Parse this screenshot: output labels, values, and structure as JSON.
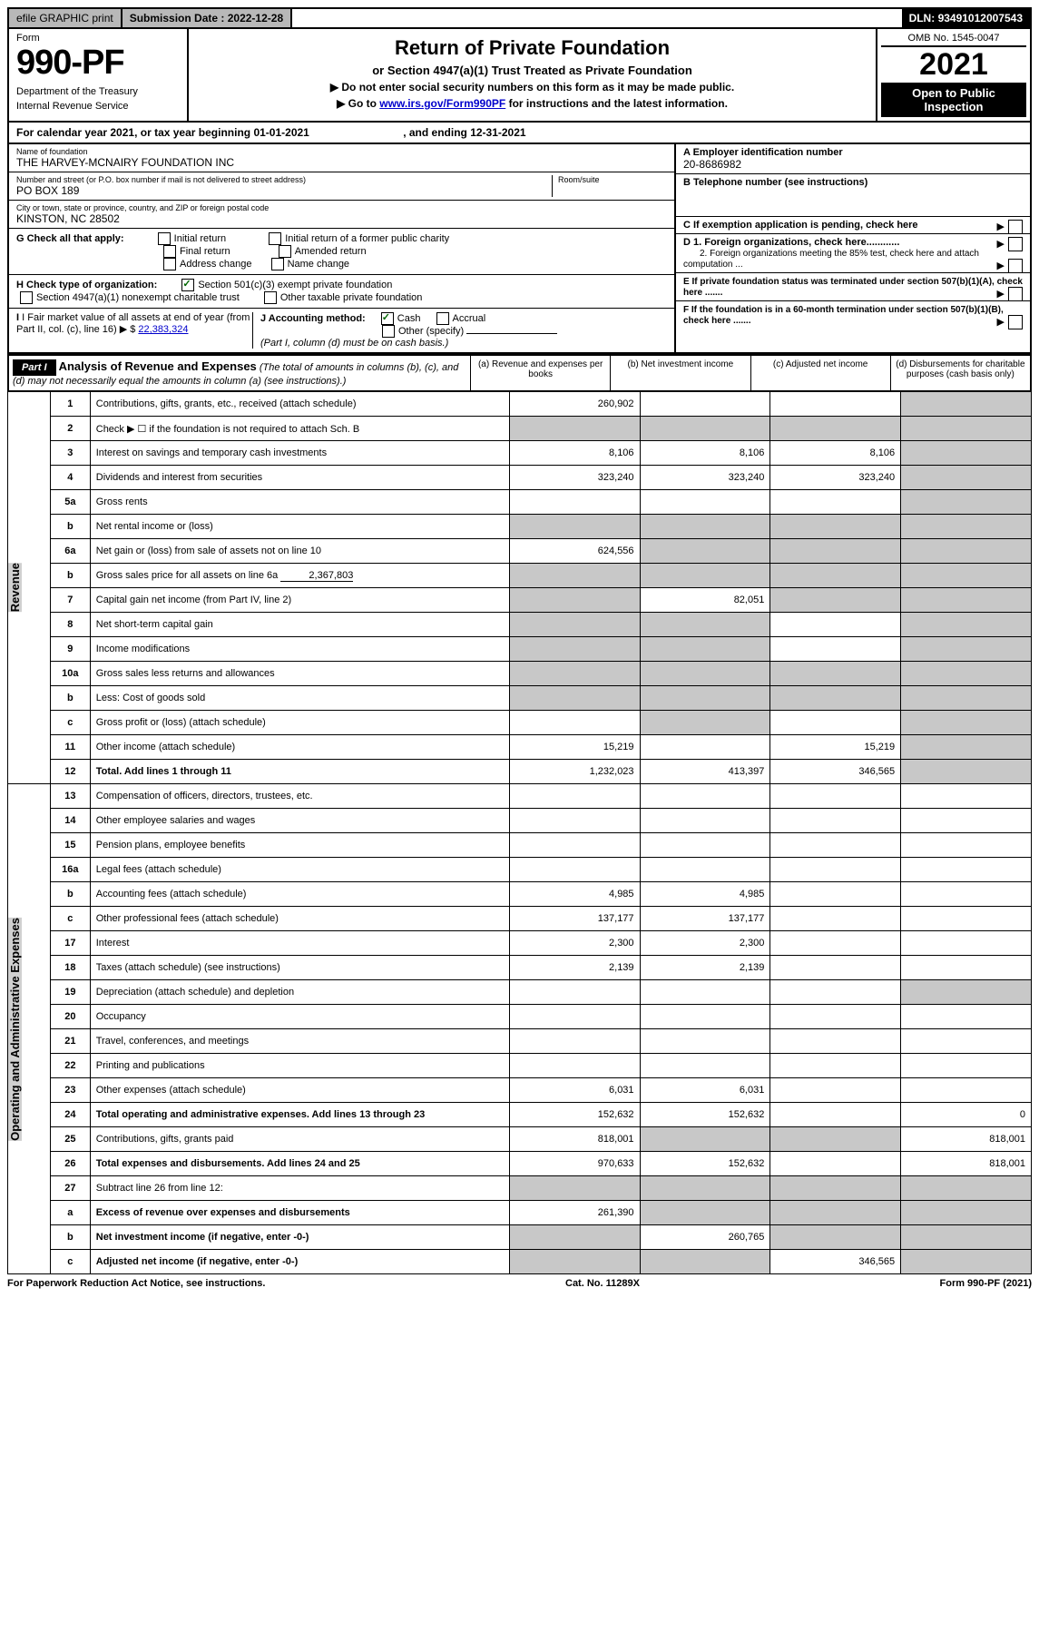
{
  "topbar": {
    "efile": "efile GRAPHIC print",
    "submission_label": "Submission Date : ",
    "submission_date": "2022-12-28",
    "dln_label": "DLN: ",
    "dln": "93491012007543"
  },
  "header": {
    "form_label": "Form",
    "form_no": "990-PF",
    "dept1": "Department of the Treasury",
    "dept2": "Internal Revenue Service",
    "title": "Return of Private Foundation",
    "subtitle": "or Section 4947(a)(1) Trust Treated as Private Foundation",
    "note1": "▶ Do not enter social security numbers on this form as it may be made public.",
    "note2_pre": "▶ Go to ",
    "note2_link": "www.irs.gov/Form990PF",
    "note2_post": " for instructions and the latest information.",
    "omb": "OMB No. 1545-0047",
    "year": "2021",
    "openbox1": "Open to Public",
    "openbox2": "Inspection"
  },
  "calyear": {
    "pre": "For calendar year 2021, or tax year beginning ",
    "begin": "01-01-2021",
    "mid": " , and ending ",
    "end": "12-31-2021"
  },
  "info": {
    "name_label": "Name of foundation",
    "name": "THE HARVEY-MCNAIRY FOUNDATION INC",
    "addr_label": "Number and street (or P.O. box number if mail is not delivered to street address)",
    "addr": "PO BOX 189",
    "room_label": "Room/suite",
    "city_label": "City or town, state or province, country, and ZIP or foreign postal code",
    "city": "KINSTON, NC  28502",
    "ein_label": "A Employer identification number",
    "ein": "20-8686982",
    "tel_label": "B Telephone number (see instructions)",
    "c_label": "C If exemption application is pending, check here",
    "d1": "D 1. Foreign organizations, check here............",
    "d2": "2. Foreign organizations meeting the 85% test, check here and attach computation ...",
    "e_label": "E  If private foundation status was terminated under section 507(b)(1)(A), check here .......",
    "f_label": "F  If the foundation is in a 60-month termination under section 507(b)(1)(B), check here .......",
    "g_label": "G Check all that apply:",
    "g_opts": [
      "Initial return",
      "Final return",
      "Address change",
      "Initial return of a former public charity",
      "Amended return",
      "Name change"
    ],
    "h_label": "H Check type of organization:",
    "h_opts": [
      "Section 501(c)(3) exempt private foundation",
      "Section 4947(a)(1) nonexempt charitable trust",
      "Other taxable private foundation"
    ],
    "i_label": "I Fair market value of all assets at end of year (from Part II, col. (c), line 16) ▶ $",
    "i_val": "22,383,324",
    "j_label": "J Accounting method:",
    "j_opts": [
      "Cash",
      "Accrual",
      "Other (specify)"
    ],
    "j_note": "(Part I, column (d) must be on cash basis.)"
  },
  "part1": {
    "header": "Part I",
    "title": "Analysis of Revenue and Expenses",
    "title_note": " (The total of amounts in columns (b), (c), and (d) may not necessarily equal the amounts in column (a) (see instructions).)",
    "col_a": "(a) Revenue and expenses per books",
    "col_b": "(b) Net investment income",
    "col_c": "(c) Adjusted net income",
    "col_d": "(d) Disbursements for charitable purposes (cash basis only)",
    "section_revenue": "Revenue",
    "section_expenses": "Operating and Administrative Expenses"
  },
  "rows": [
    {
      "num": "1",
      "desc": "Contributions, gifts, grants, etc., received (attach schedule)",
      "a": "260,902",
      "b": "",
      "c": "",
      "d": "",
      "d_shade": true
    },
    {
      "num": "2",
      "desc": "Check ▶ ☐ if the foundation is not required to attach Sch. B",
      "a": "",
      "b": "",
      "c": "",
      "d": "",
      "a_shade": true,
      "b_shade": true,
      "c_shade": true,
      "d_shade": true
    },
    {
      "num": "3",
      "desc": "Interest on savings and temporary cash investments",
      "a": "8,106",
      "b": "8,106",
      "c": "8,106",
      "d": "",
      "d_shade": true
    },
    {
      "num": "4",
      "desc": "Dividends and interest from securities",
      "a": "323,240",
      "b": "323,240",
      "c": "323,240",
      "d": "",
      "d_shade": true
    },
    {
      "num": "5a",
      "desc": "Gross rents",
      "a": "",
      "b": "",
      "c": "",
      "d": "",
      "d_shade": true
    },
    {
      "num": "b",
      "desc": "Net rental income or (loss)",
      "a": "",
      "b": "",
      "c": "",
      "d": "",
      "a_shade": true,
      "b_shade": true,
      "c_shade": true,
      "d_shade": true
    },
    {
      "num": "6a",
      "desc": "Net gain or (loss) from sale of assets not on line 10",
      "a": "624,556",
      "b": "",
      "c": "",
      "d": "",
      "b_shade": true,
      "c_shade": true,
      "d_shade": true
    },
    {
      "num": "b",
      "desc": "Gross sales price for all assets on line 6a",
      "inline": "2,367,803",
      "a": "",
      "b": "",
      "c": "",
      "d": "",
      "a_shade": true,
      "b_shade": true,
      "c_shade": true,
      "d_shade": true
    },
    {
      "num": "7",
      "desc": "Capital gain net income (from Part IV, line 2)",
      "a": "",
      "b": "82,051",
      "c": "",
      "d": "",
      "a_shade": true,
      "c_shade": true,
      "d_shade": true
    },
    {
      "num": "8",
      "desc": "Net short-term capital gain",
      "a": "",
      "b": "",
      "c": "",
      "d": "",
      "a_shade": true,
      "b_shade": true,
      "d_shade": true
    },
    {
      "num": "9",
      "desc": "Income modifications",
      "a": "",
      "b": "",
      "c": "",
      "d": "",
      "a_shade": true,
      "b_shade": true,
      "d_shade": true
    },
    {
      "num": "10a",
      "desc": "Gross sales less returns and allowances",
      "a": "",
      "b": "",
      "c": "",
      "d": "",
      "a_shade": true,
      "b_shade": true,
      "c_shade": true,
      "d_shade": true
    },
    {
      "num": "b",
      "desc": "Less: Cost of goods sold",
      "a": "",
      "b": "",
      "c": "",
      "d": "",
      "a_shade": true,
      "b_shade": true,
      "c_shade": true,
      "d_shade": true
    },
    {
      "num": "c",
      "desc": "Gross profit or (loss) (attach schedule)",
      "a": "",
      "b": "",
      "c": "",
      "d": "",
      "b_shade": true,
      "d_shade": true
    },
    {
      "num": "11",
      "desc": "Other income (attach schedule)",
      "a": "15,219",
      "b": "",
      "c": "15,219",
      "d": "",
      "d_shade": true
    },
    {
      "num": "12",
      "desc": "Total. Add lines 1 through 11",
      "bold": true,
      "a": "1,232,023",
      "b": "413,397",
      "c": "346,565",
      "d": "",
      "d_shade": true
    },
    {
      "num": "13",
      "desc": "Compensation of officers, directors, trustees, etc.",
      "a": "",
      "b": "",
      "c": "",
      "d": ""
    },
    {
      "num": "14",
      "desc": "Other employee salaries and wages",
      "a": "",
      "b": "",
      "c": "",
      "d": ""
    },
    {
      "num": "15",
      "desc": "Pension plans, employee benefits",
      "a": "",
      "b": "",
      "c": "",
      "d": ""
    },
    {
      "num": "16a",
      "desc": "Legal fees (attach schedule)",
      "a": "",
      "b": "",
      "c": "",
      "d": ""
    },
    {
      "num": "b",
      "desc": "Accounting fees (attach schedule)",
      "a": "4,985",
      "b": "4,985",
      "c": "",
      "d": ""
    },
    {
      "num": "c",
      "desc": "Other professional fees (attach schedule)",
      "a": "137,177",
      "b": "137,177",
      "c": "",
      "d": ""
    },
    {
      "num": "17",
      "desc": "Interest",
      "a": "2,300",
      "b": "2,300",
      "c": "",
      "d": ""
    },
    {
      "num": "18",
      "desc": "Taxes (attach schedule) (see instructions)",
      "a": "2,139",
      "b": "2,139",
      "c": "",
      "d": ""
    },
    {
      "num": "19",
      "desc": "Depreciation (attach schedule) and depletion",
      "a": "",
      "b": "",
      "c": "",
      "d": "",
      "d_shade": true
    },
    {
      "num": "20",
      "desc": "Occupancy",
      "a": "",
      "b": "",
      "c": "",
      "d": ""
    },
    {
      "num": "21",
      "desc": "Travel, conferences, and meetings",
      "a": "",
      "b": "",
      "c": "",
      "d": ""
    },
    {
      "num": "22",
      "desc": "Printing and publications",
      "a": "",
      "b": "",
      "c": "",
      "d": ""
    },
    {
      "num": "23",
      "desc": "Other expenses (attach schedule)",
      "a": "6,031",
      "b": "6,031",
      "c": "",
      "d": ""
    },
    {
      "num": "24",
      "desc": "Total operating and administrative expenses. Add lines 13 through 23",
      "bold": true,
      "a": "152,632",
      "b": "152,632",
      "c": "",
      "d": "0"
    },
    {
      "num": "25",
      "desc": "Contributions, gifts, grants paid",
      "a": "818,001",
      "b": "",
      "c": "",
      "d": "818,001",
      "b_shade": true,
      "c_shade": true
    },
    {
      "num": "26",
      "desc": "Total expenses and disbursements. Add lines 24 and 25",
      "bold": true,
      "a": "970,633",
      "b": "152,632",
      "c": "",
      "d": "818,001"
    },
    {
      "num": "27",
      "desc": "Subtract line 26 from line 12:",
      "a": "",
      "b": "",
      "c": "",
      "d": "",
      "a_shade": true,
      "b_shade": true,
      "c_shade": true,
      "d_shade": true
    },
    {
      "num": "a",
      "desc": "Excess of revenue over expenses and disbursements",
      "bold": true,
      "a": "261,390",
      "b": "",
      "c": "",
      "d": "",
      "b_shade": true,
      "c_shade": true,
      "d_shade": true
    },
    {
      "num": "b",
      "desc": "Net investment income (if negative, enter -0-)",
      "bold": true,
      "a": "",
      "b": "260,765",
      "c": "",
      "d": "",
      "a_shade": true,
      "c_shade": true,
      "d_shade": true
    },
    {
      "num": "c",
      "desc": "Adjusted net income (if negative, enter -0-)",
      "bold": true,
      "a": "",
      "b": "",
      "c": "346,565",
      "d": "",
      "a_shade": true,
      "b_shade": true,
      "d_shade": true
    }
  ],
  "footer": {
    "left": "For Paperwork Reduction Act Notice, see instructions.",
    "mid": "Cat. No. 11289X",
    "right": "Form 990-PF (2021)"
  }
}
